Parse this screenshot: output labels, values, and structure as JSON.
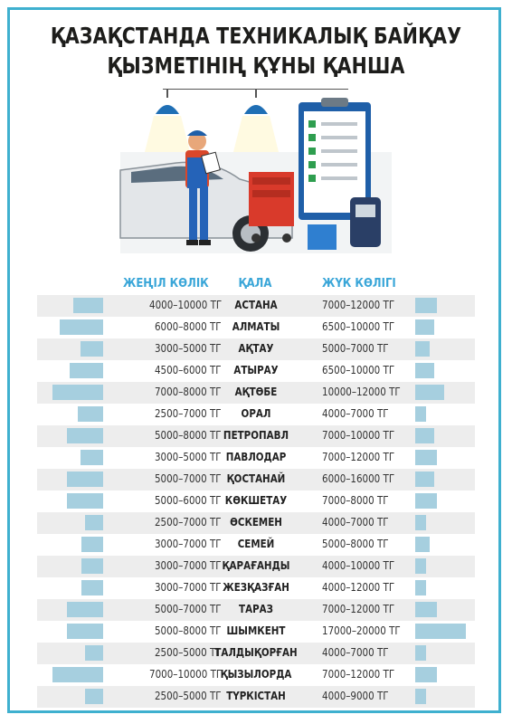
{
  "title_line1": "ҚАЗАҚСТАНДА ТЕХНИКАЛЫҚ БАЙҚАУ",
  "title_line2": "ҚЫЗМЕТІНІҢ ҚҰНЫ ҚАНША",
  "colors": {
    "frame": "#3fb0cf",
    "header": "#3aa6d8",
    "bar": "#a6cfdf",
    "row_alt": "#ededed"
  },
  "chart_data": {
    "type": "table",
    "columns": [
      "ЖЕҢІЛ КӨЛІК",
      "ҚАЛА",
      "ЖҮК КӨЛІГІ"
    ],
    "rows": [
      {
        "city": "АСТАНА",
        "car": "4000–10000 ТГ",
        "truck": "7000–12000 ТГ",
        "car_bar": 0.48,
        "truck_bar": 0.42
      },
      {
        "city": "АЛМАТЫ",
        "car": "6000–8000 ТГ",
        "truck": "6500–10000 ТГ",
        "car_bar": 0.71,
        "truck_bar": 0.37
      },
      {
        "city": "АҚТАУ",
        "car": "3000–5000 ТГ",
        "truck": "5000–7000 ТГ",
        "car_bar": 0.37,
        "truck_bar": 0.29
      },
      {
        "city": "АТЫРАУ",
        "car": "4500–6000 ТГ",
        "truck": "6500–10000 ТГ",
        "car_bar": 0.54,
        "truck_bar": 0.37
      },
      {
        "city": "АҚТӨБЕ",
        "car": "7000–8000 ТГ",
        "truck": "10000–12000 ТГ",
        "car_bar": 0.82,
        "truck_bar": 0.58
      },
      {
        "city": "ОРАЛ",
        "car": "2500–7000 ТГ",
        "truck": "4000–7000 ТГ",
        "car_bar": 0.41,
        "truck_bar": 0.22
      },
      {
        "city": "ПЕТРОПАВЛ",
        "car": "5000–8000 ТГ",
        "truck": "7000–10000 ТГ",
        "car_bar": 0.59,
        "truck_bar": 0.38
      },
      {
        "city": "ПАВЛОДАР",
        "car": "3000–5000 ТГ",
        "truck": "7000–12000 ТГ",
        "car_bar": 0.37,
        "truck_bar": 0.42
      },
      {
        "city": "ҚОСТАНАЙ",
        "car": "5000–7000 ТГ",
        "truck": "6000–16000 ТГ",
        "car_bar": 0.59,
        "truck_bar": 0.38
      },
      {
        "city": "КӨКШЕТАУ",
        "car": "5000–6000 ТГ",
        "truck": "7000–8000 ТГ",
        "car_bar": 0.59,
        "truck_bar": 0.42
      },
      {
        "city": "ӨСКЕМЕН",
        "car": "2500–7000 ТГ",
        "truck": "4000–7000 ТГ",
        "car_bar": 0.29,
        "truck_bar": 0.22
      },
      {
        "city": "СЕМЕЙ",
        "car": "3000–7000 ТГ",
        "truck": "5000–8000 ТГ",
        "car_bar": 0.35,
        "truck_bar": 0.29
      },
      {
        "city": "ҚАРАҒАНДЫ",
        "car": "3000–7000 ТГ",
        "truck": "4000–10000 ТГ",
        "car_bar": 0.35,
        "truck_bar": 0.22
      },
      {
        "city": "ЖЕЗҚАЗҒАН",
        "car": "3000–7000 ТГ",
        "truck": "4000–12000 ТГ",
        "car_bar": 0.35,
        "truck_bar": 0.22
      },
      {
        "city": "ТАРАЗ",
        "car": "5000–7000 ТГ",
        "truck": "7000–12000 ТГ",
        "car_bar": 0.59,
        "truck_bar": 0.42
      },
      {
        "city": "ШЫМКЕНТ",
        "car": "5000–8000 ТГ",
        "truck": "17000–20000 ТГ",
        "car_bar": 0.59,
        "truck_bar": 1.0
      },
      {
        "city": "ТАЛДЫҚОРҒАН",
        "car": "2500–5000 ТГ",
        "truck": "4000–7000 ТГ",
        "car_bar": 0.29,
        "truck_bar": 0.22
      },
      {
        "city": "ҚЫЗЫЛОРДА",
        "car": "7000–10000 ТГ",
        "truck": "7000–12000 ТГ",
        "car_bar": 0.82,
        "truck_bar": 0.42
      },
      {
        "city": "ТҮРКІСТАН",
        "car": "2500–5000 ТГ",
        "truck": "4000–9000 ТГ",
        "car_bar": 0.29,
        "truck_bar": 0.22
      }
    ]
  }
}
